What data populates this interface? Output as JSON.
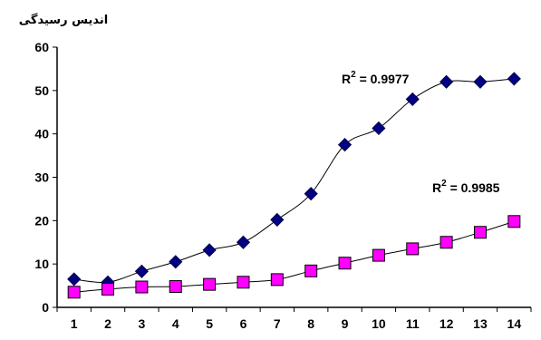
{
  "chart_data": {
    "type": "scatter",
    "ylabel": "اندیس رسیدگی",
    "xlabel": "",
    "x": [
      1,
      2,
      3,
      4,
      5,
      6,
      7,
      8,
      9,
      10,
      11,
      12,
      13,
      14
    ],
    "xlim": [
      0.5,
      14.5
    ],
    "ylim": [
      0,
      60
    ],
    "yticks": [
      0,
      10,
      20,
      30,
      40,
      50,
      60
    ],
    "grid": false,
    "series": [
      {
        "marker": "diamond",
        "color": "#000080",
        "values": [
          6.5,
          5.8,
          8.3,
          10.5,
          13.2,
          15.0,
          20.2,
          26.2,
          37.5,
          41.3,
          48.0,
          52.0,
          52.0,
          52.7
        ],
        "r2_label": "R² = 0.9977",
        "r2_base": "R",
        "r2_sup": "2",
        "r2_value": " = 0.9977"
      },
      {
        "marker": "square",
        "color": "#ff00ff",
        "values": [
          3.5,
          4.2,
          4.7,
          4.8,
          5.3,
          5.8,
          6.4,
          8.4,
          10.2,
          12.0,
          13.5,
          15.0,
          17.3,
          19.8
        ],
        "r2_label": "R² = 0.9985",
        "r2_base": "R",
        "r2_sup": "2",
        "r2_value": " = 0.9985"
      }
    ]
  }
}
